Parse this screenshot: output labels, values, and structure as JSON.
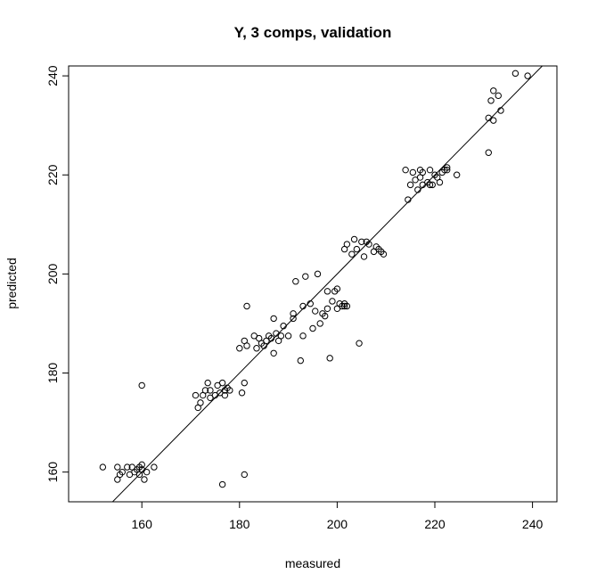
{
  "chart_data": {
    "type": "scatter",
    "title": "Y, 3 comps, validation",
    "xlabel": "measured",
    "ylabel": "predicted",
    "xlim": [
      145,
      245
    ],
    "ylim": [
      154,
      242
    ],
    "xticks": [
      160,
      180,
      200,
      220,
      240
    ],
    "yticks": [
      160,
      180,
      200,
      220,
      240
    ],
    "reference_line": {
      "slope": 1,
      "intercept": 0
    },
    "points": [
      [
        152,
        161
      ],
      [
        155,
        161
      ],
      [
        155,
        158.5
      ],
      [
        155.5,
        159.5
      ],
      [
        156,
        160
      ],
      [
        157,
        161
      ],
      [
        157.5,
        159.5
      ],
      [
        158,
        161
      ],
      [
        158.5,
        160
      ],
      [
        159,
        160.5
      ],
      [
        159.5,
        161
      ],
      [
        159.5,
        159.5
      ],
      [
        160,
        161.5
      ],
      [
        160,
        160.5
      ],
      [
        160.5,
        158.5
      ],
      [
        161,
        160
      ],
      [
        162.5,
        161
      ],
      [
        160,
        177.5
      ],
      [
        171,
        175.5
      ],
      [
        171.5,
        173
      ],
      [
        172,
        174
      ],
      [
        172.5,
        175.5
      ],
      [
        173,
        176.5
      ],
      [
        173.5,
        178
      ],
      [
        174,
        175
      ],
      [
        174,
        176.5
      ],
      [
        175,
        175.5
      ],
      [
        175.5,
        177.5
      ],
      [
        176,
        176
      ],
      [
        176.5,
        178
      ],
      [
        177,
        176.5
      ],
      [
        177,
        175.5
      ],
      [
        177.5,
        177
      ],
      [
        178,
        176.5
      ],
      [
        176.5,
        157.5
      ],
      [
        180,
        185
      ],
      [
        180.5,
        176
      ],
      [
        181,
        178
      ],
      [
        181,
        186.5
      ],
      [
        181.5,
        185.5
      ],
      [
        181.5,
        193.5
      ],
      [
        181,
        159.5
      ],
      [
        183,
        187.5
      ],
      [
        183.5,
        185
      ],
      [
        184,
        187
      ],
      [
        184.5,
        186
      ],
      [
        185,
        185.5
      ],
      [
        185.5,
        186.5
      ],
      [
        186,
        187.5
      ],
      [
        186.5,
        187
      ],
      [
        187,
        184
      ],
      [
        187,
        191
      ],
      [
        187.5,
        188
      ],
      [
        188,
        186.5
      ],
      [
        188.5,
        187.5
      ],
      [
        189,
        189.5
      ],
      [
        190,
        187.5
      ],
      [
        191,
        191
      ],
      [
        191,
        192
      ],
      [
        191.5,
        198.5
      ],
      [
        192.5,
        182.5
      ],
      [
        193,
        187.5
      ],
      [
        193,
        193.5
      ],
      [
        193.5,
        199.5
      ],
      [
        194.5,
        194
      ],
      [
        195,
        189
      ],
      [
        195.5,
        192.5
      ],
      [
        196,
        200
      ],
      [
        196.5,
        190
      ],
      [
        197,
        192
      ],
      [
        197.5,
        191.5
      ],
      [
        198,
        193
      ],
      [
        198,
        196.5
      ],
      [
        198.5,
        183
      ],
      [
        199,
        194.5
      ],
      [
        199.5,
        196.5
      ],
      [
        200,
        193
      ],
      [
        200,
        197
      ],
      [
        200.5,
        194
      ],
      [
        201,
        193.5
      ],
      [
        201.5,
        193.5
      ],
      [
        201.5,
        194
      ],
      [
        202,
        193.5
      ],
      [
        201.5,
        205
      ],
      [
        202,
        206
      ],
      [
        203,
        204
      ],
      [
        203.5,
        207
      ],
      [
        204,
        205
      ],
      [
        204.5,
        186
      ],
      [
        205,
        206.5
      ],
      [
        205.5,
        203.5
      ],
      [
        206,
        206.5
      ],
      [
        206.5,
        206
      ],
      [
        207.5,
        204.5
      ],
      [
        208,
        205.5
      ],
      [
        208.5,
        205
      ],
      [
        209,
        204.5
      ],
      [
        209.5,
        204
      ],
      [
        214,
        221
      ],
      [
        214.5,
        215
      ],
      [
        215,
        218
      ],
      [
        215.5,
        220.5
      ],
      [
        216,
        219
      ],
      [
        216.5,
        217
      ],
      [
        217,
        221
      ],
      [
        217,
        219.5
      ],
      [
        217.5,
        218
      ],
      [
        217.5,
        220.5
      ],
      [
        218.5,
        218.5
      ],
      [
        219,
        221
      ],
      [
        219,
        218
      ],
      [
        219.5,
        218
      ],
      [
        220,
        220
      ],
      [
        220.5,
        219.5
      ],
      [
        221,
        218.5
      ],
      [
        221.5,
        220.5
      ],
      [
        222,
        221
      ],
      [
        222.5,
        221.5
      ],
      [
        222.5,
        221
      ],
      [
        224.5,
        220
      ],
      [
        231,
        231.5
      ],
      [
        231,
        224.5
      ],
      [
        231.5,
        235
      ],
      [
        232,
        237
      ],
      [
        232,
        231
      ],
      [
        233,
        236
      ],
      [
        233.5,
        233
      ],
      [
        236.5,
        240.5
      ],
      [
        239,
        240
      ]
    ]
  }
}
